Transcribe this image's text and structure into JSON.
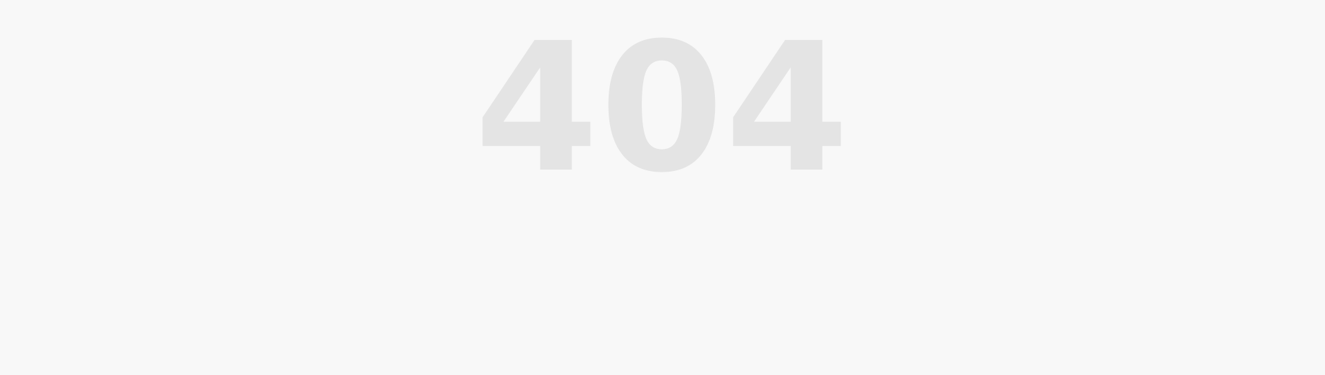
{
  "error": {
    "code": "404"
  },
  "colors": {
    "background": "#f8f8f8",
    "code_text": "#e4e4e4"
  }
}
